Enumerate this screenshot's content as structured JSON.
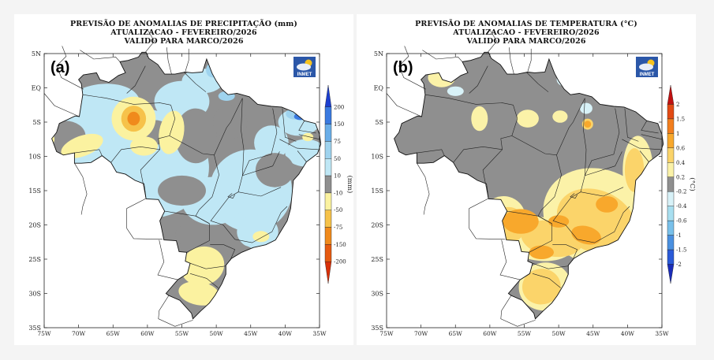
{
  "panels": [
    {
      "id": "a",
      "title_lines": [
        "PREVISÃO DE ANOMALIAS DE PRECIPITAÇÃO (mm)",
        "ATUALIZACAO - FEVEREIRO/2026",
        "VALIDO PARA MARCO/2026"
      ],
      "panel_label": "(a)",
      "logo_text": "INMET",
      "colorbar": {
        "unit_label": "(mm)",
        "tick_labels": [
          "200",
          "150",
          "75",
          "50",
          "10",
          "-10",
          "-50",
          "-75",
          "-150",
          "-200"
        ],
        "colors": [
          "#1c3fd0",
          "#3a7ae0",
          "#6aaee8",
          "#9fd3ee",
          "#bfe7f5",
          "#8f8f8f",
          "#fbf2a0",
          "#f6c24a",
          "#f08a1c",
          "#e65a10",
          "#d83008"
        ]
      }
    },
    {
      "id": "b",
      "title_lines": [
        "PREVISÃO DE ANOMALIAS DE TEMPERATURA (°C)",
        "ATUALIZACAO - FEVEREIRO/2026",
        "VALIDO PARA MARCO/2026"
      ],
      "panel_label": "(b)",
      "logo_text": "INMET",
      "colorbar": {
        "unit_label": "(°C)",
        "tick_labels": [
          "2",
          "1.5",
          "1",
          "0.6",
          "0.4",
          "0.2",
          "-0.2",
          "-0.4",
          "-0.6",
          "-1",
          "-1.5",
          "-2"
        ],
        "colors": [
          "#c01010",
          "#e24a14",
          "#f27e1e",
          "#f8a82c",
          "#fbd46a",
          "#fbf2a8",
          "#8f8f8f",
          "#d8f2f8",
          "#a8dff0",
          "#78c0ea",
          "#4a90e0",
          "#2a5ad8",
          "#1a2cb8"
        ]
      }
    }
  ],
  "axes": {
    "lat_labels": [
      "5N",
      "EQ",
      "5S",
      "10S",
      "15S",
      "20S",
      "25S",
      "30S",
      "35S"
    ],
    "lon_labels": [
      "75W",
      "70W",
      "65W",
      "60W",
      "55W",
      "50W",
      "45W",
      "40W",
      "35W"
    ]
  },
  "colors": {
    "land_gray": "#8f8f8f",
    "ocean": "#ffffff",
    "border": "#222222"
  }
}
